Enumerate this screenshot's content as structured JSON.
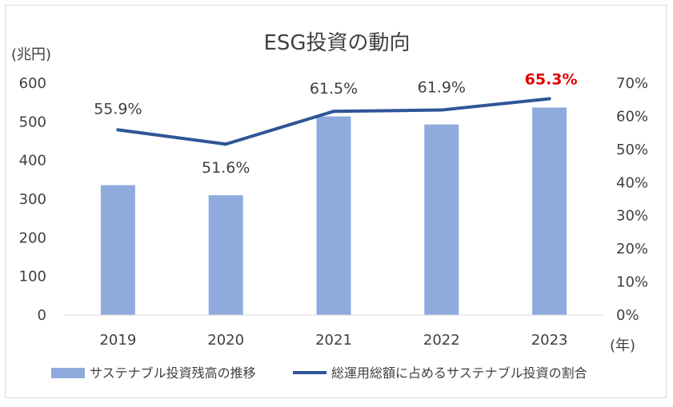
{
  "chart_data": {
    "type": "bar",
    "title": "ESG投資の動向",
    "left_axis_unit": "(兆円)",
    "x_axis_unit": "(年)",
    "categories": [
      "2019",
      "2020",
      "2021",
      "2022",
      "2023"
    ],
    "left_ylim": [
      0,
      600
    ],
    "left_ticks": [
      "0",
      "100",
      "200",
      "300",
      "400",
      "500",
      "600"
    ],
    "right_ylim": [
      0,
      70
    ],
    "right_ticks": [
      "0%",
      "10%",
      "20%",
      "30%",
      "40%",
      "50%",
      "60%",
      "70%"
    ],
    "grid": false,
    "legend_position": "bottom",
    "series": [
      {
        "name": "サステナブル投資残高の推移",
        "type": "bar",
        "axis": "left",
        "color": "#8faadc",
        "values": [
          336,
          310,
          514,
          493,
          537
        ]
      },
      {
        "name": "総運用総額に占めるサステナブル投資の割合",
        "type": "line",
        "axis": "right",
        "color": "#2f5597",
        "values": [
          55.9,
          51.6,
          61.5,
          61.9,
          65.3
        ],
        "labels": [
          "55.9%",
          "51.6%",
          "61.5%",
          "61.9%",
          "65.3%"
        ],
        "highlight_color": "#e00000",
        "highlight_index": 4
      }
    ]
  }
}
